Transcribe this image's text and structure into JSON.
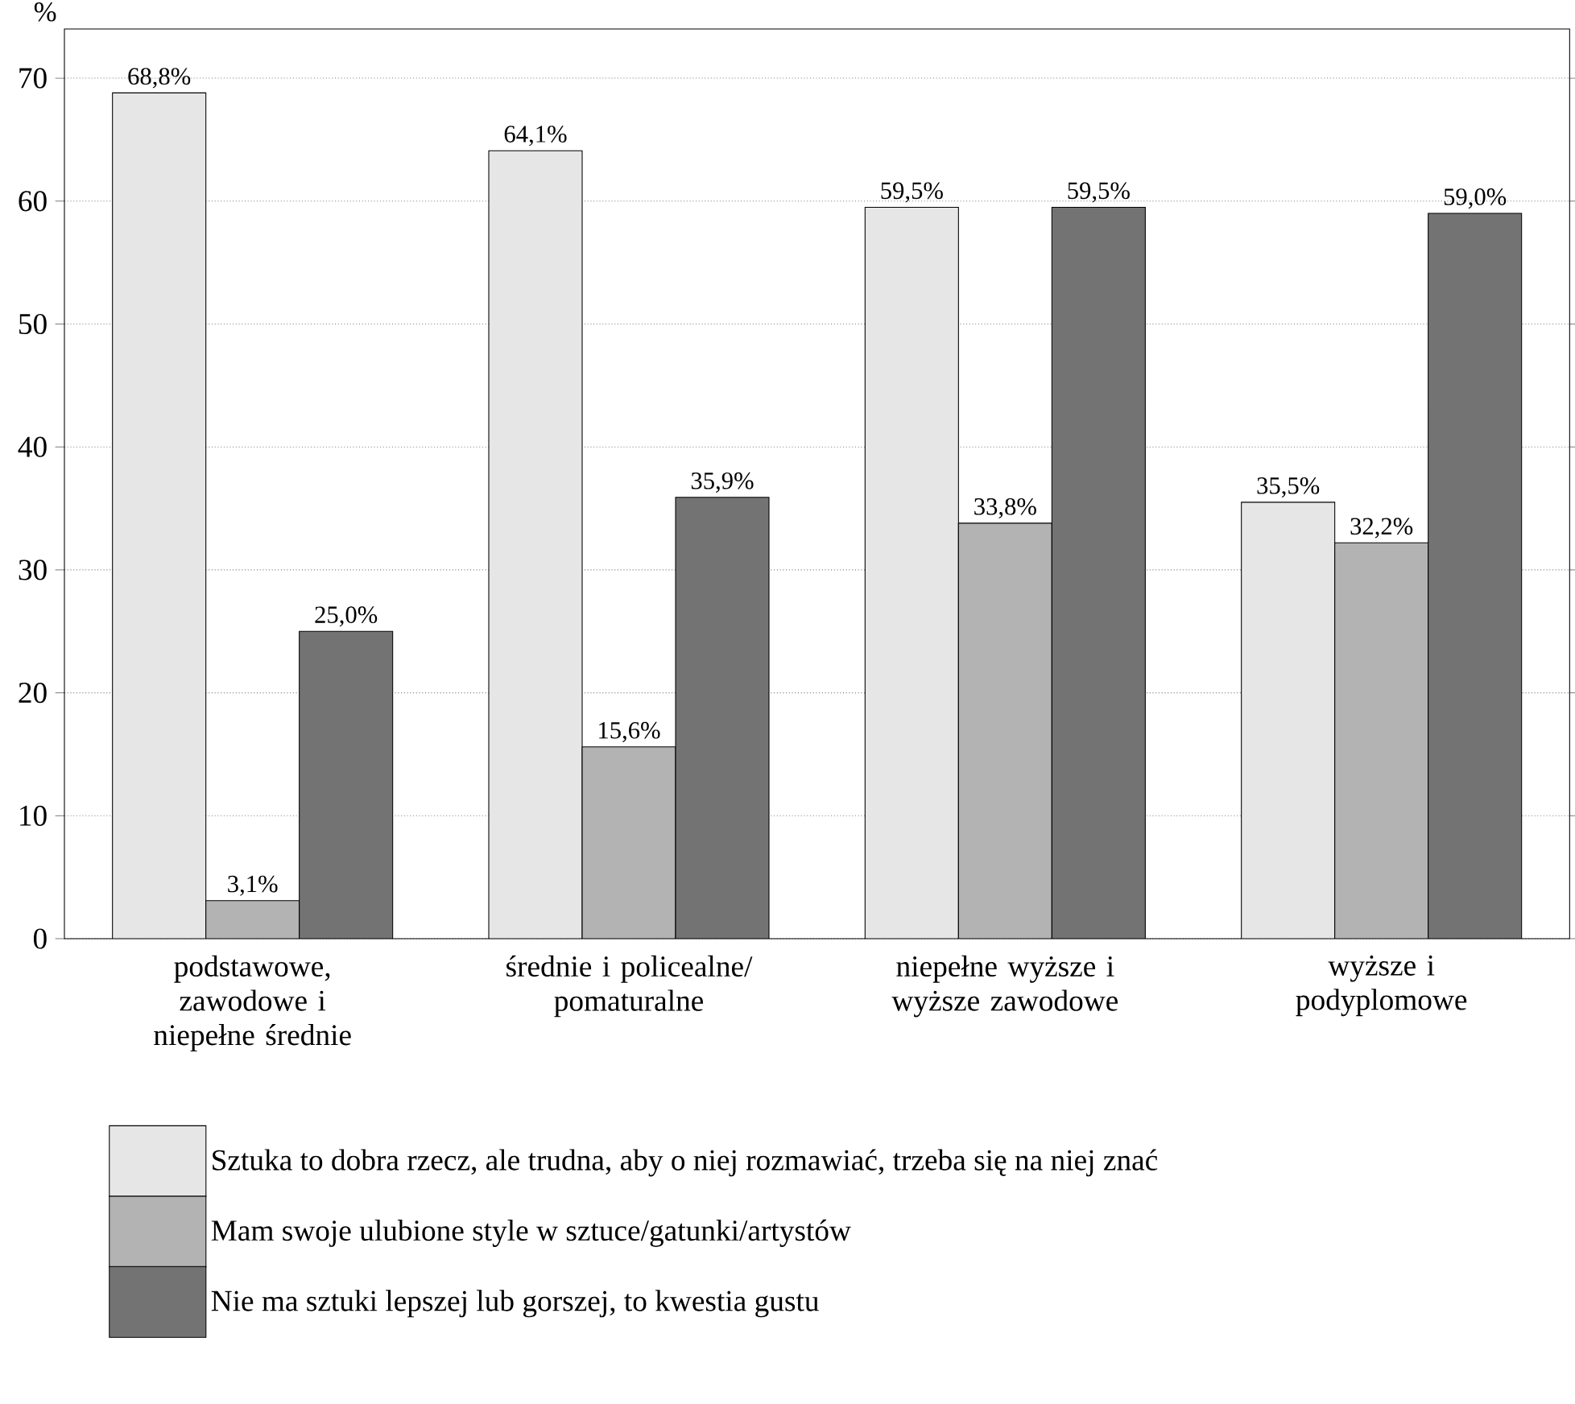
{
  "chart_data": {
    "type": "bar",
    "ylabel": "%",
    "categories": [
      "podstawowe, zawodowe i niepełne średnie",
      "średnie i policealne/ pomaturalne",
      "niepełne wyższe i wyższe zawodowe",
      "wyższe i podyplomowe"
    ],
    "series": [
      {
        "name": "Sztuka to dobra rzecz, ale trudna, aby o niej rozmawiać, trzeba się na niej znać",
        "color": "#e6e6e6",
        "values": [
          68.8,
          64.1,
          59.5,
          35.5
        ],
        "value_labels": [
          "68,8%",
          "64,1%",
          "59,5%",
          "35,5%"
        ]
      },
      {
        "name": "Mam swoje ulubione style w sztuce/gatunki/artystów",
        "color": "#b3b3b3",
        "values": [
          3.1,
          15.6,
          33.8,
          32.2
        ],
        "value_labels": [
          "3,1%",
          "15,6%",
          "33,8%",
          "32,2%"
        ]
      },
      {
        "name": "Nie ma sztuki lepszej lub gorszej, to kwestia gustu",
        "color": "#737373",
        "values": [
          25.0,
          35.9,
          59.5,
          59.0
        ],
        "value_labels": [
          "25,0%",
          "35,9%",
          "59,5%",
          "59,0%"
        ]
      }
    ],
    "ylim": [
      0,
      74
    ],
    "yticks": [
      0,
      10,
      20,
      30,
      40,
      50,
      60,
      70
    ],
    "grid": "y",
    "legend": "bottom"
  }
}
